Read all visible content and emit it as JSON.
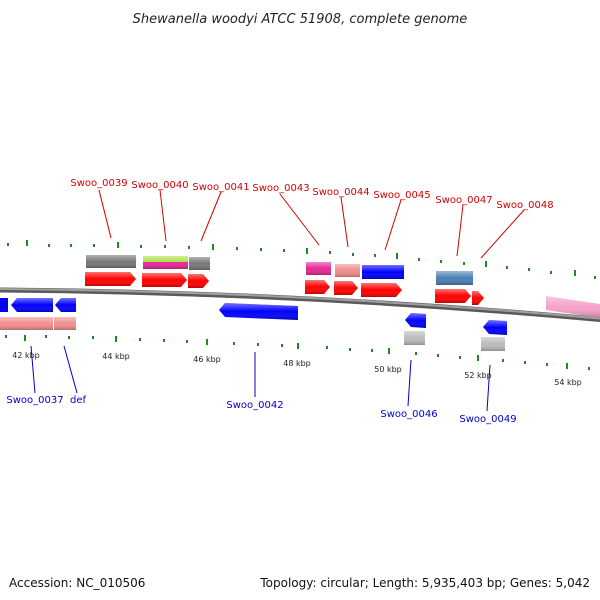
{
  "title": "Shewanella woodyi ATCC 51908, complete genome",
  "footer": {
    "accession": "Accession: NC_010506",
    "summary": "Topology: circular; Length: 5,935,403 bp; Genes: 5,042"
  },
  "colors": {
    "top_label": "#d40000",
    "bottom_label": "#0000c8",
    "backbone": "#808080",
    "tick": "#1f8a1f",
    "red": "#ff0000",
    "blue": "#0000ff",
    "gray": "#777777",
    "salmon": "#f08c8c",
    "magenta": "#e62896",
    "lime": "#a6e03c",
    "steel": "#4a7fb5",
    "silver": "#bbbbbb",
    "pink": "#f5a0c8"
  },
  "scale_labels": [
    "42 kbp",
    "44 kbp",
    "46 kbp",
    "48 kbp",
    "50 kbp",
    "52 kbp",
    "54 kbp"
  ],
  "top_genes": [
    "Swoo_0039",
    "Swoo_0040",
    "Swoo_0041",
    "Swoo_0043",
    "Swoo_0044",
    "Swoo_0045",
    "Swoo_0047",
    "Swoo_0048"
  ],
  "bottom_genes": [
    "Swoo_0037",
    "def",
    "Swoo_0042",
    "Swoo_0046",
    "Swoo_0049"
  ]
}
